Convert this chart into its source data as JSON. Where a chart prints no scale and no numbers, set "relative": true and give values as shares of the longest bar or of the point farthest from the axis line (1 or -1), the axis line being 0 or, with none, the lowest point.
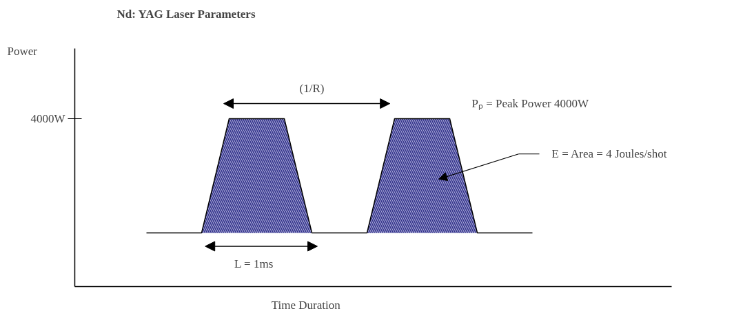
{
  "chart_data": {
    "type": "line",
    "title": "Nd: YAG Laser Parameters",
    "xlabel": "Time Duration",
    "relative": true,
    "line_style": "solid",
    "categories": [
      null,
      null,
      null,
      null,
      null,
      null,
      null,
      null,
      null,
      null,
      null,
      null,
      null,
      null,
      null
    ],
    "series": [
      {
        "color": "#000000",
        "values": [
          0.32,
          0.32,
          0.32,
          1,
          1,
          1,
          0.32,
          0.32,
          0.32,
          1,
          1,
          1,
          0.32,
          0.32,
          0.32
        ],
        "lower": [
          0.32,
          0.32,
          0.32,
          0.32,
          0.32,
          0.32,
          0.32,
          0.32,
          0.32,
          0.32,
          0.32,
          0.32,
          0.32,
          0.32,
          0.32
        ],
        "upper": [
          0.32,
          0.32,
          0.32,
          1,
          1,
          1,
          0.32,
          0.32,
          0.32,
          1,
          1,
          1,
          0.32,
          0.32,
          0.32
        ]
      }
    ],
    "annotations": [
      "4000W",
      "(1/R)",
      "L = 1ms",
      "Pₚ = Peak Power  4000W",
      "E = Area = 4 Joules/shot",
      "Power"
    ]
  }
}
